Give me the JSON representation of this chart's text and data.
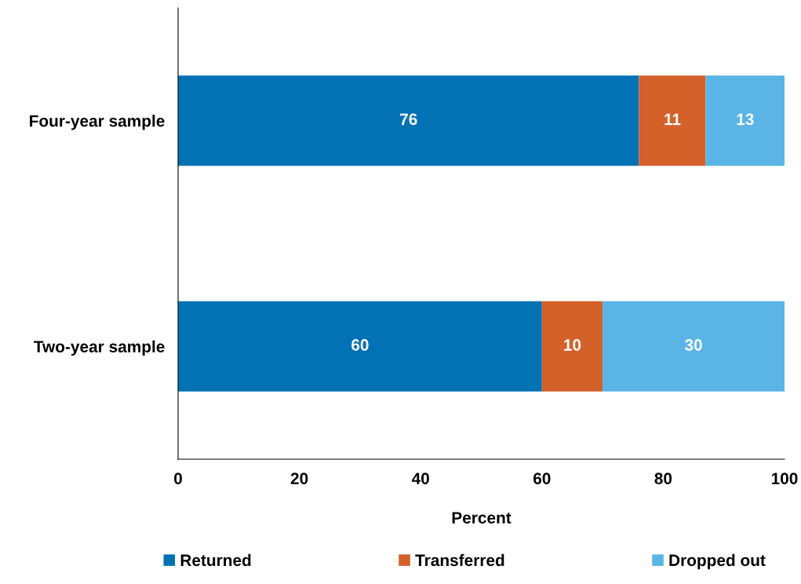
{
  "chart_data": {
    "type": "bar",
    "orientation": "horizontal",
    "stacked": true,
    "categories": [
      "Four-year sample",
      "Two-year sample"
    ],
    "series": [
      {
        "name": "Returned",
        "color": "#0372b5",
        "values": [
          76,
          60
        ]
      },
      {
        "name": "Transferred",
        "color": "#d4602a",
        "values": [
          11,
          10
        ]
      },
      {
        "name": "Dropped out",
        "color": "#5ab4e5",
        "values": [
          13,
          30
        ]
      }
    ],
    "xlabel": "Percent",
    "xlim": [
      0,
      100
    ],
    "xticks": [
      0,
      20,
      40,
      60,
      80,
      100
    ],
    "data_labels": true,
    "grid": false,
    "legend": "bottom"
  }
}
